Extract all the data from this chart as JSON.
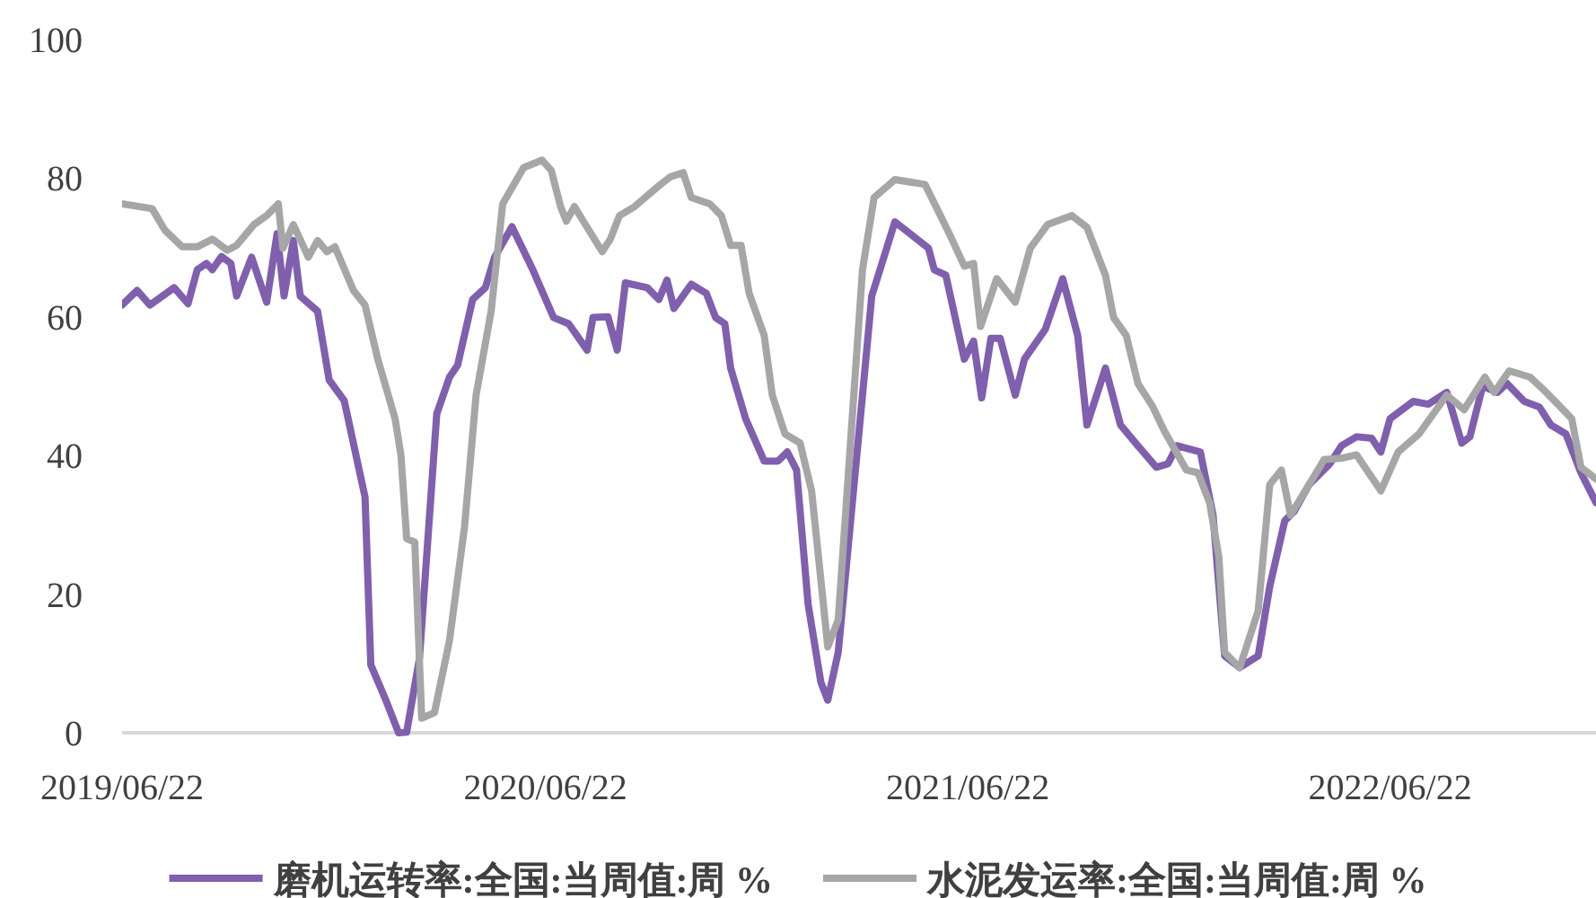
{
  "chart_data": {
    "type": "line",
    "legend": "bottom",
    "xlim": [
      "2019-06-22",
      "2022-12-17"
    ],
    "ylim": [
      0,
      100
    ],
    "yticks": [
      0,
      20,
      40,
      60,
      80,
      100
    ],
    "xticks": [
      {
        "value": "2019-06-22",
        "label": "2019/06/22"
      },
      {
        "value": "2020-06-22",
        "label": "2020/06/22"
      },
      {
        "value": "2021-06-22",
        "label": "2021/06/22"
      },
      {
        "value": "2022-06-22",
        "label": "2022/06/22"
      }
    ],
    "series": [
      {
        "name": "磨机运转率:全国:当周值:周 %",
        "color": "#7f5fae",
        "x": [
          "2019-06-22",
          "2019-07-05",
          "2019-07-16",
          "2019-08-06",
          "2019-08-18",
          "2019-08-26",
          "2019-09-03",
          "2019-09-08",
          "2019-09-16",
          "2019-09-24",
          "2019-09-29",
          "2019-10-12",
          "2019-10-25",
          "2019-11-03",
          "2019-11-09",
          "2019-11-17",
          "2019-11-23",
          "2019-12-08",
          "2019-12-18",
          "2019-12-31",
          "2020-01-18",
          "2020-01-23",
          "2020-02-05",
          "2020-02-16",
          "2020-02-23",
          "2020-03-05",
          "2020-03-20",
          "2020-03-31",
          "2020-04-07",
          "2020-04-20",
          "2020-05-01",
          "2020-05-09",
          "2020-05-24",
          "2020-06-11",
          "2020-06-29",
          "2020-07-12",
          "2020-07-28",
          "2020-08-02",
          "2020-08-15",
          "2020-08-23",
          "2020-08-30",
          "2020-09-18",
          "2020-09-28",
          "2020-10-05",
          "2020-10-11",
          "2020-10-26",
          "2020-11-08",
          "2020-11-16",
          "2020-11-24",
          "2020-11-29",
          "2020-12-12",
          "2020-12-28",
          "2021-01-09",
          "2021-01-17",
          "2021-01-25",
          "2021-02-04",
          "2021-02-15",
          "2021-02-21",
          "2021-03-02",
          "2021-03-23",
          "2021-03-31",
          "2021-04-20",
          "2021-05-03",
          "2021-05-19",
          "2021-05-24",
          "2021-06-03",
          "2021-06-19",
          "2021-06-27",
          "2021-07-04",
          "2021-07-12",
          "2021-07-20",
          "2021-08-02",
          "2021-08-10",
          "2021-08-28",
          "2021-09-12",
          "2021-09-25",
          "2021-10-03",
          "2021-10-19",
          "2021-11-01",
          "2021-11-16",
          "2021-12-02",
          "2021-12-12",
          "2021-12-20",
          "2022-01-09",
          "2022-01-20",
          "2022-01-30",
          "2022-02-12",
          "2022-02-28",
          "2022-03-10",
          "2022-03-23",
          "2022-03-31",
          "2022-04-13",
          "2022-05-01",
          "2022-05-11",
          "2022-05-24",
          "2022-06-06",
          "2022-06-14",
          "2022-06-22",
          "2022-07-12",
          "2022-07-25",
          "2022-08-10",
          "2022-08-23",
          "2022-08-30",
          "2022-09-10",
          "2022-09-23",
          "2022-10-01",
          "2022-10-16",
          "2022-10-29",
          "2022-11-08",
          "2022-11-21",
          "2022-12-04",
          "2022-12-17"
        ],
        "values": [
          61.7,
          63.8,
          61.7,
          64.2,
          61.9,
          66.8,
          67.7,
          66.8,
          68.7,
          67.7,
          63,
          68.6,
          62.1,
          72,
          63,
          71,
          63,
          60.8,
          50.9,
          47.9,
          34,
          9.8,
          4.7,
          0,
          0.1,
          10.7,
          46,
          51.3,
          53,
          62.5,
          64.2,
          68.6,
          73,
          66.8,
          59.9,
          59,
          55.2,
          59.9,
          60,
          55.2,
          64.9,
          64.2,
          62.5,
          65.3,
          61.2,
          64.7,
          63.4,
          59.9,
          59,
          52.6,
          45.3,
          39.2,
          39.2,
          40.5,
          37.9,
          18.5,
          7.3,
          4.7,
          11.6,
          48.7,
          63,
          73.7,
          72,
          69.9,
          66.8,
          66,
          53.9,
          56.5,
          48.3,
          56.9,
          56.9,
          48.7,
          53.9,
          58.2,
          65.5,
          57.3,
          44.4,
          52.6,
          44.4,
          41.4,
          38.3,
          38.8,
          41.4,
          40.5,
          31.4,
          11.1,
          9.4,
          11.1,
          21.1,
          30.6,
          31.9,
          35.8,
          38.8,
          41.4,
          42.7,
          42.5,
          40.5,
          45.3,
          47.8,
          47.4,
          49.1,
          41.8,
          42.7,
          50,
          49.1,
          50.4,
          47.8,
          47,
          44.4,
          43.1,
          37.5,
          33.2
        ]
      },
      {
        "name": "水泥发运率:全国:当周值:周 %",
        "color": "#a6a6a6",
        "x": [
          "2019-06-22",
          "2019-07-18",
          "2019-07-29",
          "2019-08-13",
          "2019-08-26",
          "2019-09-08",
          "2019-09-21",
          "2019-09-29",
          "2019-10-14",
          "2019-10-25",
          "2019-11-04",
          "2019-11-08",
          "2019-11-17",
          "2019-11-30",
          "2019-12-08",
          "2019-12-16",
          "2019-12-23",
          "2020-01-08",
          "2020-01-18",
          "2020-01-29",
          "2020-02-13",
          "2020-02-18",
          "2020-02-23",
          "2020-03-01",
          "2020-03-07",
          "2020-03-18",
          "2020-03-31",
          "2020-04-13",
          "2020-04-23",
          "2020-05-06",
          "2020-05-16",
          "2020-06-03",
          "2020-06-19",
          "2020-06-27",
          "2020-07-05",
          "2020-07-10",
          "2020-07-17",
          "2020-07-28",
          "2020-08-10",
          "2020-08-17",
          "2020-08-25",
          "2020-09-07",
          "2020-09-28",
          "2020-10-08",
          "2020-10-19",
          "2020-10-26",
          "2020-11-11",
          "2020-11-21",
          "2020-11-29",
          "2020-12-08",
          "2020-12-15",
          "2020-12-28",
          "2021-01-04",
          "2021-01-15",
          "2021-01-28",
          "2021-02-07",
          "2021-02-21",
          "2021-03-02",
          "2021-03-23",
          "2021-04-02",
          "2021-04-20",
          "2021-05-16",
          "2021-06-06",
          "2021-06-19",
          "2021-06-27",
          "2021-07-03",
          "2021-07-17",
          "2021-08-02",
          "2021-08-15",
          "2021-08-30",
          "2021-09-20",
          "2021-10-03",
          "2021-10-19",
          "2021-10-26",
          "2021-11-06",
          "2021-11-16",
          "2021-11-29",
          "2021-12-09",
          "2021-12-28",
          "2022-01-07",
          "2022-01-17",
          "2022-01-25",
          "2022-01-30",
          "2022-02-12",
          "2022-02-28",
          "2022-03-10",
          "2022-03-20",
          "2022-03-28",
          "2022-04-13",
          "2022-04-26",
          "2022-05-11",
          "2022-05-24",
          "2022-06-14",
          "2022-06-29",
          "2022-07-17",
          "2022-08-10",
          "2022-08-25",
          "2022-09-12",
          "2022-09-20",
          "2022-10-03",
          "2022-10-21",
          "2022-11-01",
          "2022-11-14",
          "2022-11-26",
          "2022-12-04",
          "2022-12-17"
        ],
        "values": [
          76.3,
          75.6,
          72.5,
          70.1,
          70.1,
          71.2,
          69.6,
          70.3,
          73.3,
          74.6,
          76.3,
          69.9,
          73.3,
          68.6,
          71,
          69.4,
          70.1,
          63.8,
          61.7,
          53.9,
          45.3,
          40.1,
          28,
          27.5,
          2.1,
          2.9,
          13.3,
          29.7,
          48.7,
          60.8,
          76.3,
          81.5,
          82.6,
          81.1,
          75.9,
          73.8,
          75.9,
          72.9,
          69.4,
          71.2,
          74.6,
          75.9,
          78.9,
          80.2,
          80.8,
          77.2,
          76.3,
          74.6,
          70.3,
          70.3,
          63.4,
          57.3,
          48.7,
          43.1,
          41.8,
          34.9,
          12.4,
          16.3,
          66.8,
          77.2,
          79.8,
          79.1,
          72,
          67.3,
          67.7,
          58.6,
          65.5,
          62.1,
          69.9,
          73.3,
          74.6,
          72.9,
          66,
          59.9,
          57.3,
          50.4,
          47,
          43.5,
          37.9,
          37.5,
          33.2,
          25.4,
          11.6,
          9.4,
          17.6,
          35.8,
          37.9,
          31.4,
          35.8,
          39.4,
          39.6,
          40.1,
          34.9,
          40.5,
          43.1,
          48.7,
          46.6,
          51.3,
          49.1,
          52.2,
          51.3,
          49.6,
          47.4,
          45.3,
          38.3,
          36.6
        ]
      }
    ]
  }
}
